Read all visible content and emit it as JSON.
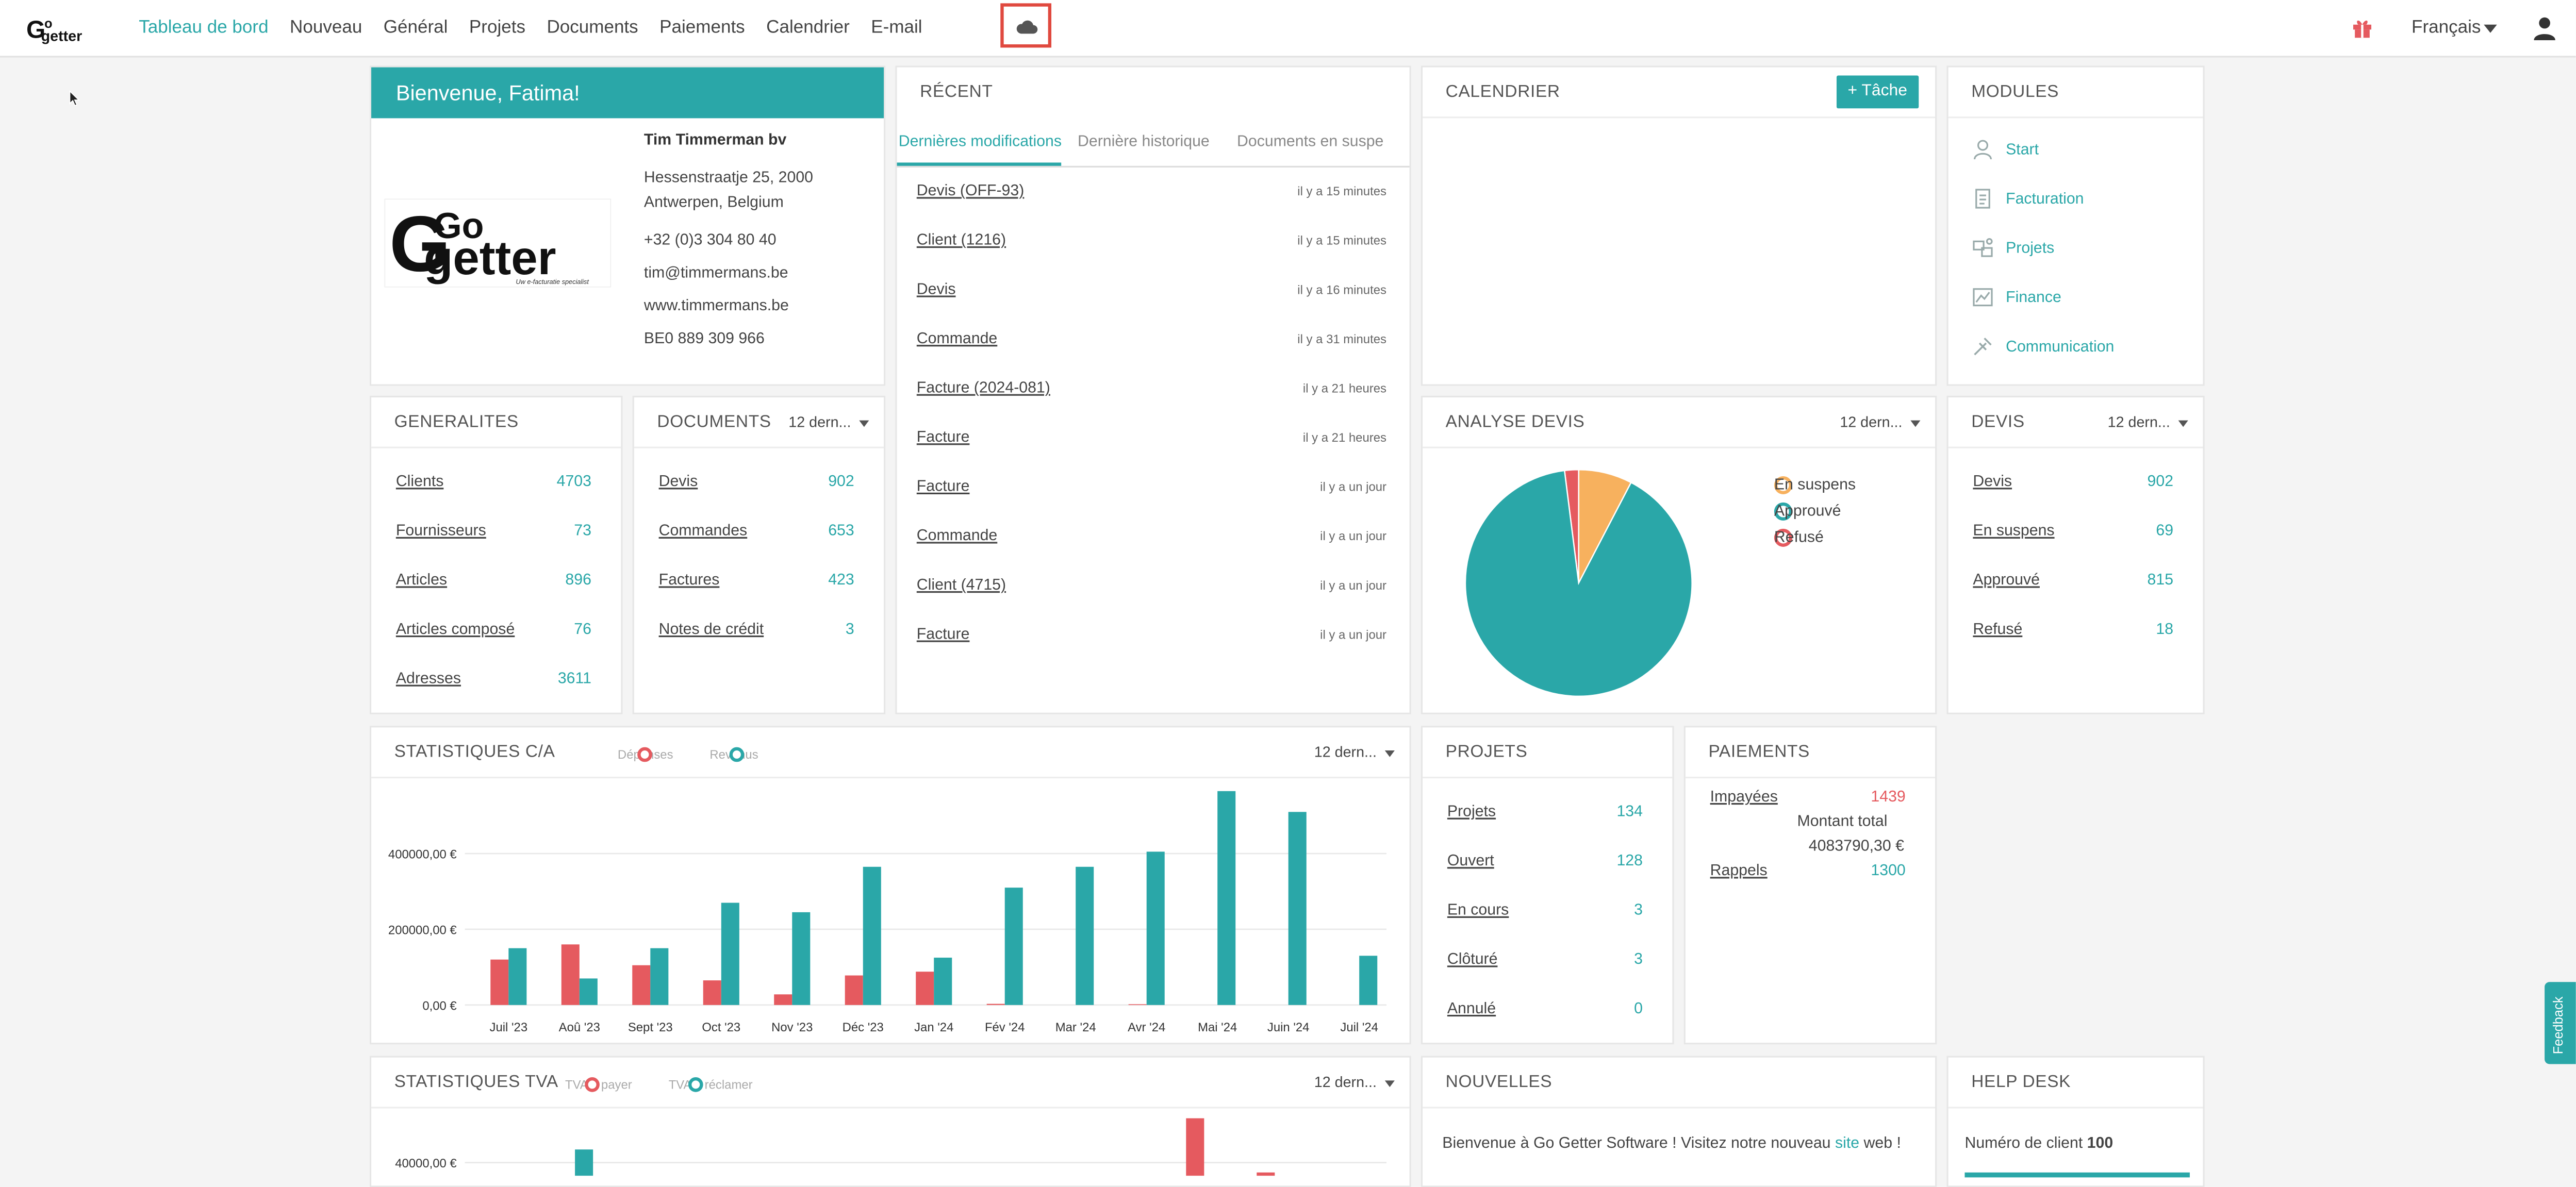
{
  "colors": {
    "accent": "#2aa7a8",
    "red": "#e55a5f",
    "orange": "#f7b15e"
  },
  "nav": {
    "items": [
      "Tableau de bord",
      "Nouveau",
      "Général",
      "Projets",
      "Documents",
      "Paiements",
      "Calendrier",
      "E-mail"
    ],
    "active_index": 0
  },
  "header": {
    "language": "Français",
    "gift_icon": "gift-icon",
    "user_icon": "user-icon",
    "cloud_icon": "cloud-icon"
  },
  "welcome": {
    "banner": "Bienvenue, Fatima!",
    "company": "Tim Timmerman bv",
    "address1": "Hessenstraatje 25, 2000",
    "address2": "Antwerpen, Belgium",
    "phone": "+32 (0)3 304 80 40",
    "email": "tim@timmermans.be",
    "website": "www.timmermans.be",
    "vat": "BE0 889 309 966",
    "logo": {
      "word1": "Go",
      "word2": "getter",
      "tagline": "Uw e-facturatie specialist"
    }
  },
  "recent": {
    "title": "RÉCENT",
    "tabs": [
      "Dernières modifications",
      "Dernière historique",
      "Documents en suspe"
    ],
    "items": [
      {
        "label": "Devis (OFF-93)",
        "time": "il y a 15 minutes"
      },
      {
        "label": "Client (1216)",
        "time": "il y a 15 minutes"
      },
      {
        "label": "Devis",
        "time": "il y a 16 minutes"
      },
      {
        "label": "Commande",
        "time": "il y a 31 minutes"
      },
      {
        "label": "Facture (2024-081)",
        "time": "il y a 21 heures"
      },
      {
        "label": "Facture",
        "time": "il y a 21 heures"
      },
      {
        "label": "Facture",
        "time": "il y a un jour"
      },
      {
        "label": "Commande",
        "time": "il y a un jour"
      },
      {
        "label": "Client (4715)",
        "time": "il y a un jour"
      },
      {
        "label": "Facture",
        "time": "il y a un jour"
      }
    ]
  },
  "calendar": {
    "title": "CALENDRIER",
    "button": "+ Tâche"
  },
  "modules": {
    "title": "MODULES",
    "items": [
      "Start",
      "Facturation",
      "Projets",
      "Finance",
      "Communication"
    ]
  },
  "generalites": {
    "title": "GENERALITES",
    "rows": [
      {
        "label": "Clients",
        "value": "4703"
      },
      {
        "label": "Fournisseurs",
        "value": "73"
      },
      {
        "label": "Articles",
        "value": "896"
      },
      {
        "label": "Articles composé",
        "value": "76"
      },
      {
        "label": "Adresses",
        "value": "3611"
      }
    ]
  },
  "documents": {
    "title": "DOCUMENTS",
    "dropdown": "12 dern...",
    "rows": [
      {
        "label": "Devis",
        "value": "902"
      },
      {
        "label": "Commandes",
        "value": "653"
      },
      {
        "label": "Factures",
        "value": "423"
      },
      {
        "label": "Notes de crédit",
        "value": "3"
      }
    ]
  },
  "analyse": {
    "title": "ANALYSE DEVIS",
    "dropdown": "12 dern...",
    "legend": [
      "En suspens",
      "Approuvé",
      "Refusé"
    ]
  },
  "devis": {
    "title": "DEVIS",
    "dropdown": "12 dern...",
    "rows": [
      {
        "label": "Devis",
        "value": "902"
      },
      {
        "label": "En suspens",
        "value": "69"
      },
      {
        "label": "Approuvé",
        "value": "815"
      },
      {
        "label": "Refusé",
        "value": "18"
      }
    ]
  },
  "stats_ca": {
    "title": "STATISTIQUES C/A",
    "dropdown": "12 dern...",
    "legend": [
      "Dépenses",
      "Revenus"
    ]
  },
  "projets": {
    "title": "PROJETS",
    "rows": [
      {
        "label": "Projets",
        "value": "134"
      },
      {
        "label": "Ouvert",
        "value": "128"
      },
      {
        "label": "En cours",
        "value": "3"
      },
      {
        "label": "Clôturé",
        "value": "3"
      },
      {
        "label": "Annulé",
        "value": "0"
      }
    ]
  },
  "paiements": {
    "title": "PAIEMENTS",
    "unpaid_label": "Impayées",
    "unpaid_value": "1439",
    "total_label": "Montant total",
    "total_value": "4083790,30 €",
    "reminders_label": "Rappels",
    "reminders_value": "1300"
  },
  "stats_tva": {
    "title": "STATISTIQUES TVA",
    "dropdown": "12 dern...",
    "legend": [
      "TVA à payer",
      "TVA à réclamer"
    ]
  },
  "news": {
    "title": "NOUVELLES",
    "text_before": "Bienvenue à Go Getter Software ! Visitez notre nouveau ",
    "link": "site",
    "text_after": " web !"
  },
  "helpdesk": {
    "title": "HELP DESK",
    "client_label": "Numéro de client",
    "client_number": "100"
  },
  "feedback": {
    "label": "Feedback"
  },
  "chart_data": [
    {
      "type": "pie",
      "title": "ANALYSE DEVIS",
      "labels": [
        "En suspens",
        "Approuvé",
        "Refusé"
      ],
      "values": [
        69,
        815,
        18
      ],
      "colors": [
        "#f7b15e",
        "#2aa7a8",
        "#e55a5f"
      ],
      "legend_position": "right"
    },
    {
      "type": "bar",
      "title": "STATISTIQUES C/A",
      "categories": [
        "Juil '23",
        "Aoû '23",
        "Sept '23",
        "Oct '23",
        "Nov '23",
        "Déc '23",
        "Jan '24",
        "Fév '24",
        "Mar '24",
        "Avr '24",
        "Mai '24",
        "Juin '24",
        "Juil '24"
      ],
      "series": [
        {
          "name": "Dépenses",
          "color": "#e55a5f",
          "values": [
            120000,
            160000,
            105000,
            65000,
            28000,
            78000,
            88000,
            3000,
            0,
            2000,
            0,
            0,
            0
          ]
        },
        {
          "name": "Revenus",
          "color": "#2aa7a8",
          "values": [
            150000,
            70000,
            150000,
            270000,
            245000,
            365000,
            125000,
            310000,
            365000,
            405000,
            565000,
            510000,
            130000
          ]
        }
      ],
      "yticks": [
        "0,00 €",
        "200000,00 €",
        "400000,00 €"
      ],
      "ylim": [
        0,
        590000
      ],
      "grid": true,
      "legend_position": "top"
    },
    {
      "type": "bar",
      "title": "STATISTIQUES TVA",
      "series": [
        {
          "name": "TVA à payer",
          "color": "#e55a5f"
        },
        {
          "name": "TVA à réclamer",
          "color": "#2aa7a8"
        }
      ],
      "yticks": [
        "40000,00 €"
      ]
    }
  ]
}
